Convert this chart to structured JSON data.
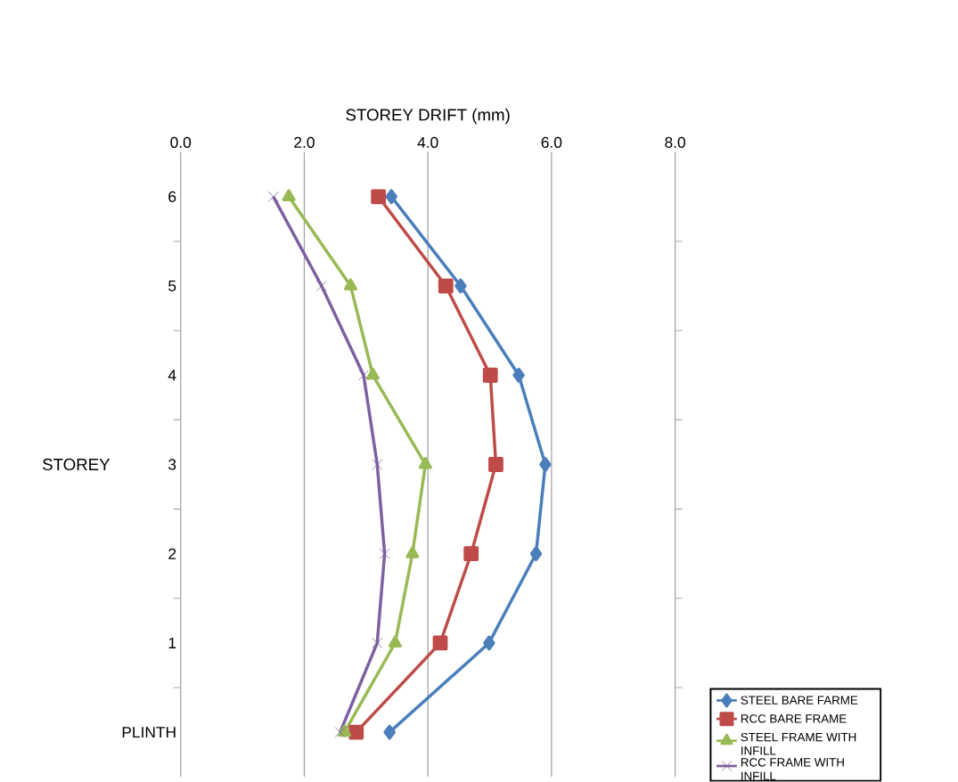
{
  "chart_data": {
    "type": "line",
    "orientation": "horizontal",
    "xlabel": "STOREY DRIFT  (mm)",
    "ylabel": "STOREY",
    "categories": [
      "6",
      "5",
      "4",
      "3",
      "2",
      "1",
      "PLINTH"
    ],
    "series": [
      {
        "name": "STEEL BARE FARME",
        "color": "#4a7ebb",
        "marker": "diamond",
        "values": [
          3.41,
          4.53,
          5.47,
          5.9,
          5.75,
          4.99,
          3.38
        ]
      },
      {
        "name": "RCC BARE FRAME",
        "color": "#be4b48",
        "marker": "square",
        "values": [
          3.2,
          4.29,
          5.01,
          5.1,
          4.7,
          4.2,
          2.84
        ]
      },
      {
        "name": "STEEL FRAME WITH INFILL",
        "color": "#98b954",
        "marker": "triangle",
        "values": [
          1.75,
          2.75,
          3.11,
          3.96,
          3.75,
          3.47,
          2.65
        ]
      },
      {
        "name": "RCC FRAME WITH INFILL",
        "color": "#7d60a0",
        "marker": "cross",
        "values": [
          1.5,
          2.28,
          2.96,
          3.18,
          3.3,
          3.18,
          2.58
        ]
      }
    ],
    "xlim": [
      0,
      8
    ],
    "xticks": [
      {
        "value": 0,
        "label": "0.0"
      },
      {
        "value": 2,
        "label": "2.0"
      },
      {
        "value": 4,
        "label": "4.0"
      },
      {
        "value": 6,
        "label": "6.0"
      },
      {
        "value": 8,
        "label": "8.0"
      }
    ],
    "grid": "x",
    "legend": "bottom right",
    "line_style": "solid"
  }
}
